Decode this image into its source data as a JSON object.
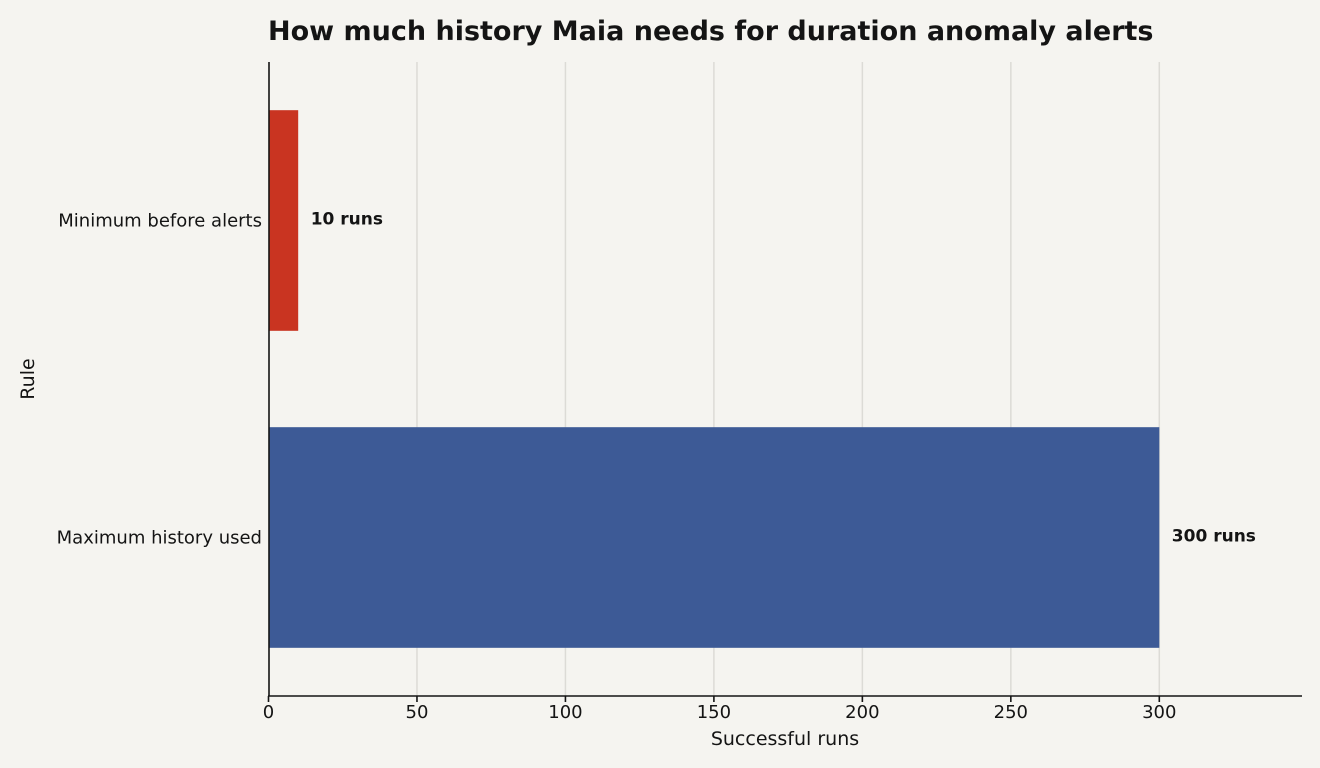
{
  "chart_data": {
    "type": "bar",
    "orientation": "horizontal",
    "title": "How much history Maia needs for duration anomaly alerts",
    "xlabel": "Successful runs",
    "ylabel": "Rule",
    "categories": [
      "Minimum before alerts",
      "Maximum history used"
    ],
    "values": [
      10,
      300
    ],
    "data_labels": [
      "10 runs",
      "300 runs"
    ],
    "colors": [
      "#c93421",
      "#3d5a96"
    ],
    "xlim": [
      0,
      348
    ],
    "xticks": [
      0,
      50,
      100,
      150,
      200,
      250,
      300
    ],
    "grid": true,
    "legend": "none"
  }
}
